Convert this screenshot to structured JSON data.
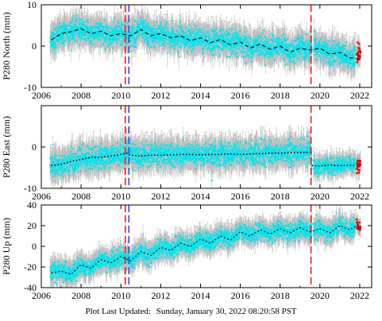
{
  "footer": {
    "label": "Plot Last Updated:",
    "timestamp": "Sunday, January 30, 2022 08:20:58 PST"
  },
  "colors": {
    "data": "#00e5ee",
    "error": "#b8b8b8",
    "model": "#000000",
    "recent": "#e00000",
    "event_red": "#e02020",
    "event_blue": "#4040ff",
    "frame": "#000000"
  },
  "chart_data": [
    {
      "type": "scatter",
      "ylabel": "P280 North (mm)",
      "xlim": [
        2006,
        2022.6
      ],
      "ylim": [
        -10,
        10
      ],
      "xticks": [
        "2006",
        "2008",
        "2010",
        "2012",
        "2014",
        "2016",
        "2018",
        "2020",
        "2022"
      ],
      "yticks": [
        "10",
        "0",
        "-10"
      ],
      "ytick_values": [
        10,
        0,
        -10
      ],
      "model_x": [
        2006.5,
        2007.0,
        2007.5,
        2008.0,
        2008.5,
        2009.0,
        2009.5,
        2010.0,
        2010.5,
        2011.0,
        2011.5,
        2012.0,
        2012.5,
        2013.0,
        2013.5,
        2014.0,
        2014.5,
        2015.0,
        2015.5,
        2016.0,
        2016.5,
        2017.0,
        2017.5,
        2018.0,
        2018.5,
        2019.0,
        2019.5,
        2020.0,
        2020.5,
        2021.0,
        2021.5,
        2022.0
      ],
      "model_y": [
        1.5,
        3.0,
        3.5,
        4.2,
        3.0,
        3.6,
        2.5,
        3.0,
        2.5,
        4.0,
        2.5,
        3.0,
        2.0,
        2.5,
        1.3,
        2.0,
        0.8,
        1.6,
        0.3,
        1.0,
        -0.5,
        0.5,
        -0.8,
        0.0,
        -1.5,
        -0.5,
        -1.0,
        -0.5,
        -2.0,
        -1.5,
        -2.8,
        -3.2
      ],
      "noise": 2.4,
      "recent_x": [
        2021.85,
        2022.05
      ],
      "recent_y": [
        -2.5,
        -1.5
      ],
      "recent_noise": 2.0,
      "events_red": [
        2010.22,
        2019.55
      ],
      "events_blue": [
        2010.4
      ]
    },
    {
      "type": "scatter",
      "ylabel": "P280 East (mm)",
      "xlim": [
        2006,
        2022.6
      ],
      "ylim": [
        -10,
        10
      ],
      "xticks": [
        "2006",
        "2008",
        "2010",
        "2012",
        "2014",
        "2016",
        "2018",
        "2020",
        "2022"
      ],
      "yticks": [
        "0",
        "-10"
      ],
      "ytick_values": [
        0,
        -10
      ],
      "model_x": [
        2006.5,
        2007.0,
        2007.5,
        2008.0,
        2008.5,
        2009.0,
        2009.5,
        2010.0,
        2010.3,
        2010.45,
        2011.0,
        2011.5,
        2012.0,
        2012.5,
        2013.0,
        2013.5,
        2014.0,
        2014.5,
        2015.0,
        2015.5,
        2016.0,
        2016.5,
        2017.0,
        2017.5,
        2018.0,
        2018.5,
        2019.0,
        2019.5,
        2019.6,
        2020.0,
        2020.5,
        2021.0,
        2021.5,
        2022.0
      ],
      "model_y": [
        -4.5,
        -4.2,
        -3.5,
        -3.0,
        -2.5,
        -2.5,
        -2.2,
        -1.8,
        -1.5,
        -2.0,
        -2.2,
        -2.0,
        -2.0,
        -1.9,
        -1.8,
        -1.8,
        -1.9,
        -1.8,
        -1.8,
        -1.7,
        -1.8,
        -1.7,
        -1.6,
        -1.5,
        -1.5,
        -1.4,
        -1.3,
        -1.3,
        -4.5,
        -4.6,
        -4.4,
        -4.5,
        -4.4,
        -4.6
      ],
      "noise": 2.4,
      "recent_x": [
        2021.85,
        2022.05
      ],
      "recent_y": [
        -4.5,
        -4.0
      ],
      "recent_noise": 2.0,
      "events_red": [
        2010.22,
        2019.55
      ],
      "events_blue": [
        2010.4
      ]
    },
    {
      "type": "scatter",
      "ylabel": "P280 Up (mm)",
      "xlim": [
        2006,
        2022.6
      ],
      "ylim": [
        -40,
        40
      ],
      "xticks": [
        "2006",
        "2008",
        "2010",
        "2012",
        "2014",
        "2016",
        "2018",
        "2020",
        "2022"
      ],
      "yticks": [
        "40",
        "20",
        "0",
        "-20",
        "-40"
      ],
      "ytick_values": [
        40,
        20,
        0,
        -20,
        -40
      ],
      "model_x": [
        2006.5,
        2007.0,
        2007.5,
        2008.0,
        2008.5,
        2009.0,
        2009.5,
        2010.0,
        2010.5,
        2011.0,
        2011.5,
        2012.0,
        2012.5,
        2013.0,
        2013.5,
        2014.0,
        2014.5,
        2015.0,
        2015.5,
        2016.0,
        2016.5,
        2017.0,
        2017.5,
        2018.0,
        2018.5,
        2019.0,
        2019.5,
        2020.0,
        2020.5,
        2021.0,
        2021.5,
        2022.0
      ],
      "model_y": [
        -26,
        -24,
        -27,
        -18,
        -21,
        -13,
        -16,
        -10,
        -14,
        -5,
        -9,
        -1,
        -4,
        3,
        0,
        7,
        3,
        10,
        6,
        14,
        10,
        16,
        12,
        17,
        13,
        18,
        14,
        17,
        13,
        20,
        16,
        22
      ],
      "noise": 7.5,
      "recent_x": [
        2021.85,
        2022.05
      ],
      "recent_y": [
        22,
        18
      ],
      "recent_noise": 6.0,
      "events_red": [
        2010.22,
        2019.55
      ],
      "events_blue": [
        2010.4
      ]
    }
  ]
}
